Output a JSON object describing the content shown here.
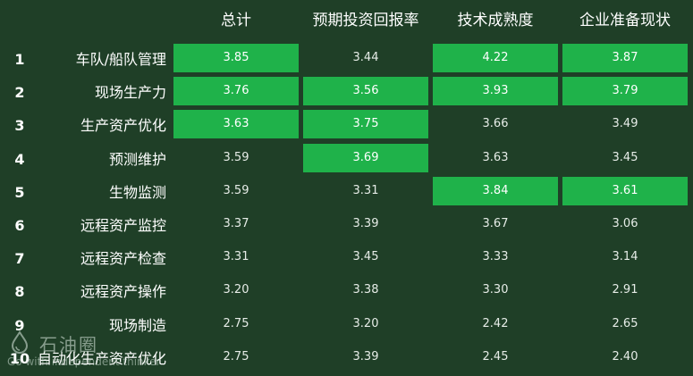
{
  "chart_data": {
    "type": "table",
    "columns": [
      "总计",
      "预期投资回报率",
      "技术成熟度",
      "企业准备现状"
    ],
    "rows": [
      {
        "rank": "1",
        "label": "车队/船队管理",
        "values": [
          "3.85",
          "3.44",
          "4.22",
          "3.87"
        ],
        "highlight": [
          true,
          false,
          true,
          true
        ]
      },
      {
        "rank": "2",
        "label": "现场生产力",
        "values": [
          "3.76",
          "3.56",
          "3.93",
          "3.79"
        ],
        "highlight": [
          true,
          true,
          true,
          true
        ]
      },
      {
        "rank": "3",
        "label": "生产资产优化",
        "values": [
          "3.63",
          "3.75",
          "3.66",
          "3.49"
        ],
        "highlight": [
          true,
          true,
          false,
          false
        ]
      },
      {
        "rank": "4",
        "label": "预测维护",
        "values": [
          "3.59",
          "3.69",
          "3.63",
          "3.45"
        ],
        "highlight": [
          false,
          true,
          false,
          false
        ]
      },
      {
        "rank": "5",
        "label": "生物监测",
        "values": [
          "3.59",
          "3.31",
          "3.84",
          "3.61"
        ],
        "highlight": [
          false,
          false,
          true,
          true
        ]
      },
      {
        "rank": "6",
        "label": "远程资产监控",
        "values": [
          "3.37",
          "3.39",
          "3.67",
          "3.06"
        ],
        "highlight": [
          false,
          false,
          false,
          false
        ]
      },
      {
        "rank": "7",
        "label": "远程资产检查",
        "values": [
          "3.31",
          "3.45",
          "3.33",
          "3.14"
        ],
        "highlight": [
          false,
          false,
          false,
          false
        ]
      },
      {
        "rank": "8",
        "label": "远程资产操作",
        "values": [
          "3.20",
          "3.38",
          "3.30",
          "2.91"
        ],
        "highlight": [
          false,
          false,
          false,
          false
        ]
      },
      {
        "rank": "9",
        "label": "现场制造",
        "values": [
          "2.75",
          "3.20",
          "2.42",
          "2.65"
        ],
        "highlight": [
          false,
          false,
          false,
          false
        ]
      },
      {
        "rank": "10",
        "label": "自动化生产资产优化",
        "values": [
          "2.75",
          "3.39",
          "2.45",
          "2.40"
        ],
        "highlight": [
          false,
          false,
          false,
          false
        ]
      }
    ]
  },
  "colors": {
    "background": "#1f3f27",
    "highlight": "#1fb24a"
  },
  "watermark": {
    "name": "石油圈",
    "slogan": "Go with independent thinker"
  }
}
